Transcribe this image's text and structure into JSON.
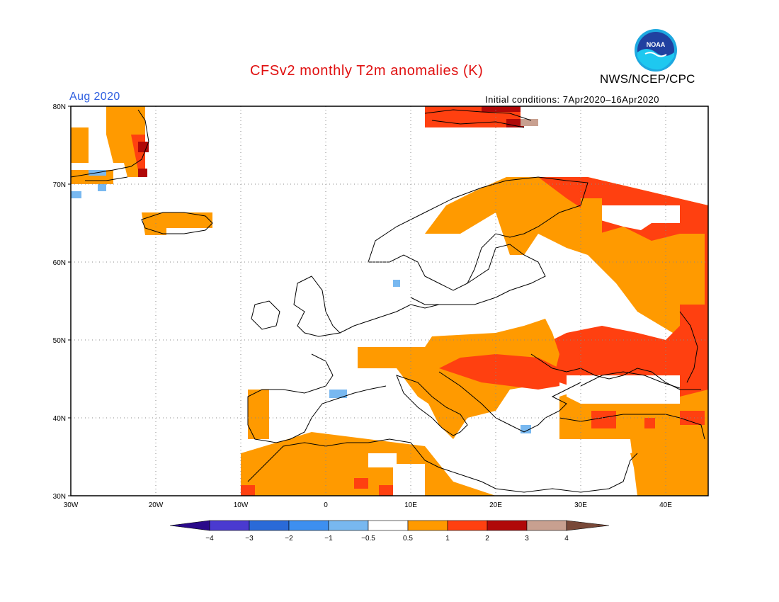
{
  "header": {
    "title": "CFSv2 monthly T2m anomalies (K)",
    "org": "NWS/NCEP/CPC",
    "period": "Aug 2020",
    "initial_conditions": "Initial conditions: 7Apr2020–16Apr2020",
    "logo_text": "NOAA"
  },
  "axes": {
    "lat_labels": [
      "80N",
      "70N",
      "60N",
      "50N",
      "40N",
      "30N"
    ],
    "lon_labels": [
      "30W",
      "20W",
      "10W",
      "0",
      "10E",
      "20E",
      "30E",
      "40E"
    ]
  },
  "colorbar": {
    "labels": [
      "−4",
      "−3",
      "−2",
      "−1",
      "−0.5",
      "0.5",
      "1",
      "2",
      "3",
      "4"
    ],
    "colors": {
      "below_m4": "#2a0a8a",
      "m4_m3": "#4a3ad0",
      "m3_m2": "#2a6ad8",
      "m2_m1": "#3d8ff0",
      "m1_m05": "#78b8f0",
      "neutral": "#ffffff",
      "p05_1": "#ff9a00",
      "p1_2": "#ff4010",
      "p2_3": "#b00808",
      "p3_4": "#c8a090",
      "above_4": "#784838"
    }
  }
}
